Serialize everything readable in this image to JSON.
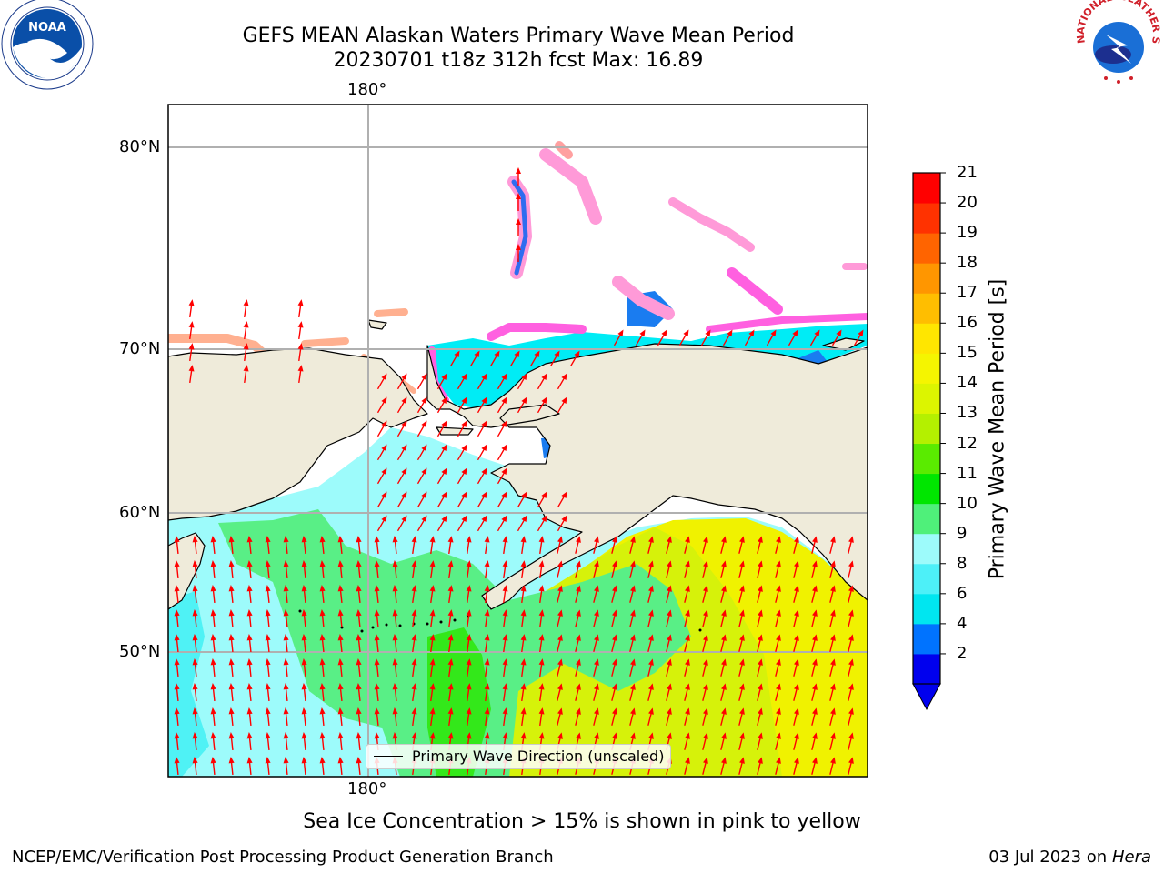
{
  "header": {
    "title_line1": "GEFS MEAN Alaskan Waters Primary Wave Mean Period",
    "title_line2": "20230701 t18z 312h fcst   Max: 16.89"
  },
  "logos": {
    "left": {
      "icon": "noaa-logo-icon",
      "text": "NOAA"
    },
    "right": {
      "icon": "nws-logo-icon",
      "text": "NATIONAL WEATHER SERVICE"
    }
  },
  "map": {
    "region": "Alaskan Waters",
    "lon_ticks": [
      "180°"
    ],
    "lat_ticks": [
      "80°N",
      "70°N",
      "60°N",
      "50°N"
    ],
    "colors": {
      "land": "#efebda",
      "arrow": "#ff0000",
      "grid": "#b0b0b0",
      "coast": "#000000"
    }
  },
  "colorbar": {
    "label": "Primary Wave Mean Period [s]",
    "ticks": [
      "21",
      "20",
      "19",
      "18",
      "17",
      "16",
      "15",
      "14",
      "13",
      "12",
      "11",
      "10",
      "9",
      "8",
      "6",
      "4",
      "2"
    ],
    "colors": [
      "#0000ee",
      "#0073ff",
      "#00e6f0",
      "#4df0f8",
      "#9dfbfb",
      "#4ff07a",
      "#00e600",
      "#5aeb00",
      "#b4f000",
      "#dcf500",
      "#f5f500",
      "#ffe600",
      "#ffbe00",
      "#ff9600",
      "#ff6400",
      "#ff3200",
      "#ff0000"
    ]
  },
  "legend": {
    "label": "Primary Wave Direction (unscaled)"
  },
  "note": "Sea Ice Concentration > 15% is shown in pink to yellow",
  "footer": {
    "left": "NCEP/EMC/Verification Post Processing Product Generation Branch",
    "date": "03 Jul 2023 on ",
    "host": "Hera"
  }
}
